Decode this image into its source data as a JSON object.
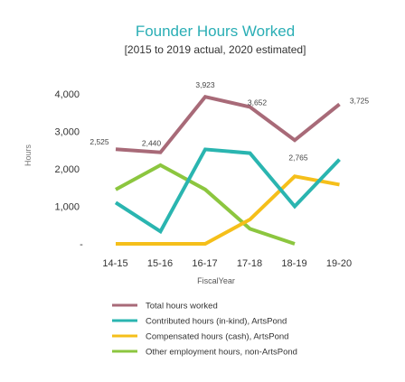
{
  "chart_data": {
    "type": "line",
    "title": "Founder Hours Worked",
    "subtitle": "[2015 to 2019 actual, 2020 estimated]",
    "xlabel": "FiscalYear",
    "ylabel": "Hours",
    "categories": [
      "14-15",
      "15-16",
      "16-17",
      "17-18",
      "18-19",
      "19-20"
    ],
    "y_ticks": [
      {
        "value": 0,
        "label": "-"
      },
      {
        "value": 1000,
        "label": "1,000"
      },
      {
        "value": 2000,
        "label": "2,000"
      },
      {
        "value": 3000,
        "label": "3,000"
      },
      {
        "value": 4000,
        "label": "4,000"
      }
    ],
    "ylim": [
      0,
      4200
    ],
    "grid": false,
    "legend_position": "bottom-left",
    "series": [
      {
        "name": "Total hours worked",
        "color": "#a86a78",
        "values": [
          2525,
          2440,
          3923,
          3652,
          2765,
          3725
        ],
        "labels": [
          "2,525",
          "2,440",
          "3,923",
          "3,652",
          "2,765",
          "3,725"
        ]
      },
      {
        "name": "Contributed hours (in-kind), ArtsPond",
        "color": "#2ab5b0",
        "values": [
          1100,
          330,
          2520,
          2420,
          1000,
          2250
        ],
        "labels": []
      },
      {
        "name": "Compensated hours (cash), ArtsPond",
        "color": "#f5bf1a",
        "values": [
          0,
          0,
          0,
          650,
          1800,
          1580
        ],
        "labels": []
      },
      {
        "name": "Other employment hours, non-ArtsPond",
        "color": "#8cc63f",
        "values": [
          1450,
          2100,
          1450,
          400,
          0,
          null
        ],
        "labels": []
      }
    ]
  }
}
